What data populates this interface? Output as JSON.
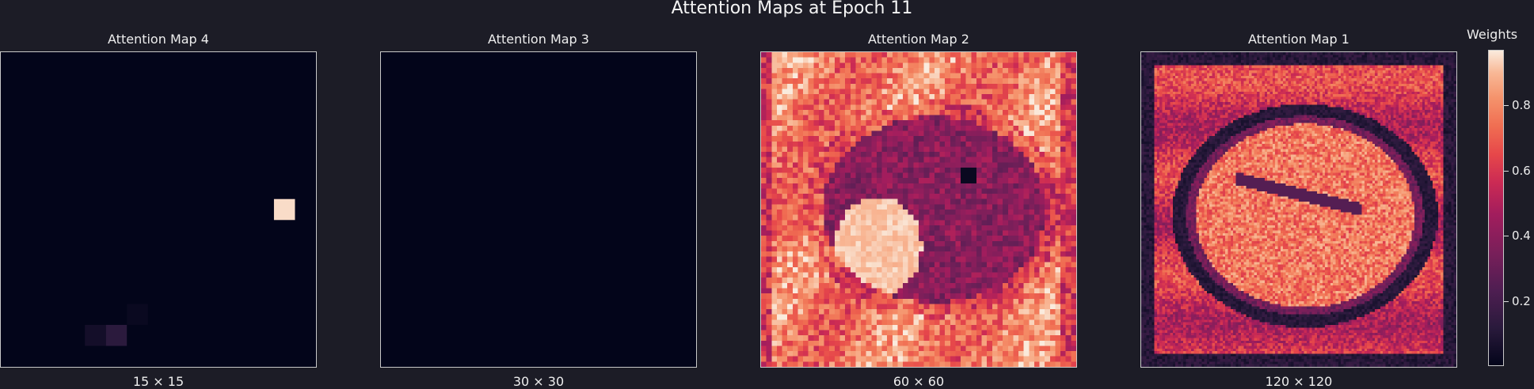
{
  "figure": {
    "title": "Attention Maps at Epoch 11"
  },
  "colorbar": {
    "label": "Weights",
    "range": [
      0.0,
      0.97
    ],
    "ticks": [
      {
        "value": 0.2,
        "label": "0.2"
      },
      {
        "value": 0.4,
        "label": "0.4"
      },
      {
        "value": 0.6,
        "label": "0.6"
      },
      {
        "value": 0.8,
        "label": "0.8"
      }
    ],
    "colormap": "rocket"
  },
  "chart_data": [
    {
      "type": "heatmap",
      "title": "Attention Map 4",
      "caption": "15 × 15",
      "grid_size": [
        15,
        15
      ],
      "background_value": 0.0,
      "highlight_cells": [
        {
          "row": 7,
          "col": 13,
          "value": 0.95
        },
        {
          "row": 13,
          "col": 5,
          "value": 0.12
        },
        {
          "row": 13,
          "col": 4,
          "value": 0.05
        },
        {
          "row": 12,
          "col": 6,
          "value": 0.02
        }
      ]
    },
    {
      "type": "heatmap",
      "title": "Attention Map 3",
      "caption": "30 × 30",
      "grid_size": [
        30,
        30
      ],
      "background_value": 0.0
    },
    {
      "type": "heatmap",
      "title": "Attention Map 2",
      "caption": "60 × 60",
      "grid_size": [
        60,
        60
      ]
    },
    {
      "type": "heatmap",
      "title": "Attention Map 1",
      "caption": "120 × 120",
      "grid_size": [
        120,
        120
      ]
    }
  ]
}
